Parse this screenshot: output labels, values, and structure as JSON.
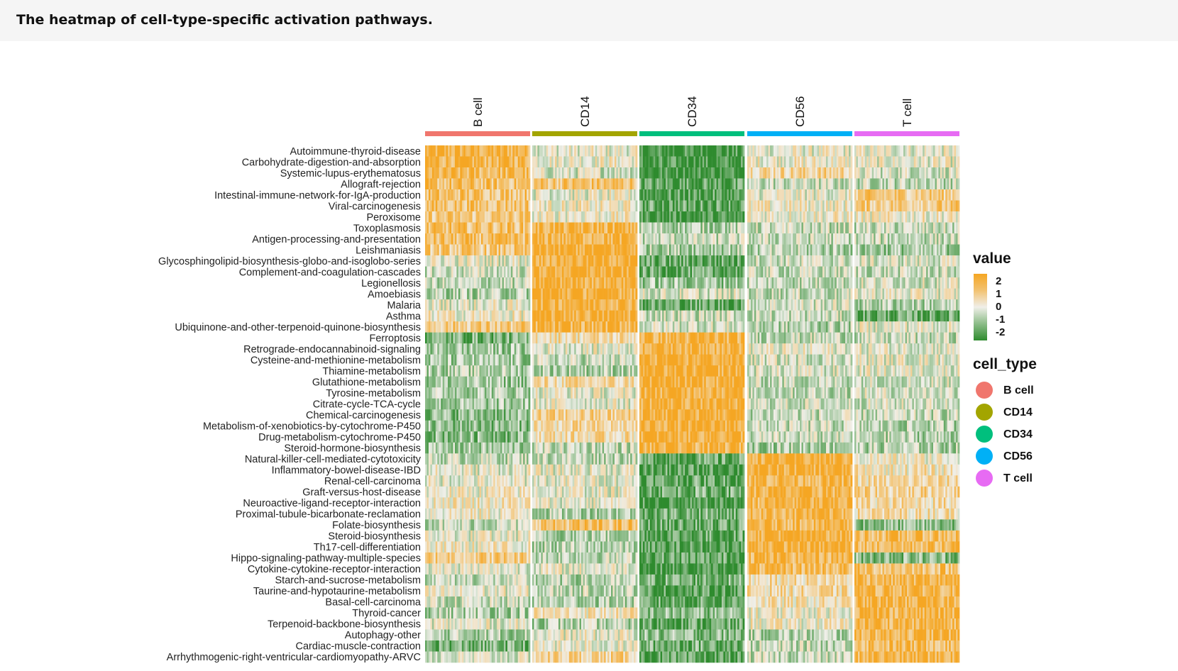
{
  "caption": "The heatmap of cell-type-specific activation pathways.",
  "chart_data": {
    "type": "heatmap",
    "columns": [
      "B cell",
      "CD14",
      "CD34",
      "CD56",
      "T cell"
    ],
    "column_colors": {
      "B cell": "#f0766d",
      "CD14": "#a3a500",
      "CD34": "#00bf7d",
      "CD56": "#00b0f6",
      "T cell": "#e76bf3"
    },
    "rows": [
      "Autoimmune-thyroid-disease",
      "Carbohydrate-digestion-and-absorption",
      "Systemic-lupus-erythematosus",
      "Allograft-rejection",
      "Intestinal-immune-network-for-IgA-production",
      "Viral-carcinogenesis",
      "Peroxisome",
      "Toxoplasmosis",
      "Antigen-processing-and-presentation",
      "Leishmaniasis",
      "Glycosphingolipid-biosynthesis-globo-and-isoglobo-series",
      "Complement-and-coagulation-cascades",
      "Legionellosis",
      "Amoebiasis",
      "Malaria",
      "Asthma",
      "Ubiquinone-and-other-terpenoid-quinone-biosynthesis",
      "Ferroptosis",
      "Retrograde-endocannabinoid-signaling",
      "Cysteine-and-methionine-metabolism",
      "Thiamine-metabolism",
      "Glutathione-metabolism",
      "Tyrosine-metabolism",
      "Citrate-cycle-TCA-cycle",
      "Chemical-carcinogenesis",
      "Metabolism-of-xenobiotics-by-cytochrome-P450",
      "Drug-metabolism-cytochrome-P450",
      "Steroid-hormone-biosynthesis",
      "Natural-killer-cell-mediated-cytotoxicity",
      "Inflammatory-bowel-disease-IBD",
      "Renal-cell-carcinoma",
      "Graft-versus-host-disease",
      "Neuroactive-ligand-receptor-interaction",
      "Proximal-tubule-bicarbonate-reclamation",
      "Folate-biosynthesis",
      "Steroid-biosynthesis",
      "Th17-cell-differentiation",
      "Hippo-signaling-pathway-multiple-species",
      "Cytokine-cytokine-receptor-interaction",
      "Starch-and-sucrose-metabolism",
      "Taurine-and-hypotaurine-metabolism",
      "Basal-cell-carcinoma",
      "Thyroid-cancer",
      "Terpenoid-backbone-biosynthesis",
      "Autophagy-other",
      "Cardiac-muscle-contraction",
      "Arrhythmogenic-right-ventricular-cardiomyopathy-ARVC"
    ],
    "mean_values": [
      [
        1.6,
        0.0,
        -1.8,
        0.0,
        0.0
      ],
      [
        1.6,
        0.2,
        -1.8,
        0.2,
        0.0
      ],
      [
        1.4,
        -0.2,
        -1.8,
        0.8,
        -0.2
      ],
      [
        1.2,
        1.2,
        -1.5,
        -0.4,
        -0.4
      ],
      [
        1.2,
        0.0,
        -1.6,
        0.0,
        1.0
      ],
      [
        1.2,
        0.2,
        -1.4,
        0.2,
        1.0
      ],
      [
        1.0,
        0.2,
        -1.8,
        0.2,
        0.2
      ],
      [
        1.2,
        1.6,
        -0.6,
        -0.4,
        -0.4
      ],
      [
        1.2,
        1.6,
        -0.4,
        -0.4,
        -0.4
      ],
      [
        1.0,
        1.8,
        -0.6,
        -0.6,
        -0.8
      ],
      [
        0.0,
        1.8,
        -1.4,
        -0.3,
        -0.2
      ],
      [
        -0.3,
        1.8,
        -1.4,
        -0.4,
        -0.4
      ],
      [
        -0.5,
        1.8,
        -0.8,
        -0.4,
        -0.2
      ],
      [
        -0.6,
        1.8,
        -0.2,
        -0.4,
        0.0
      ],
      [
        0.0,
        1.8,
        -1.4,
        -0.2,
        -0.6
      ],
      [
        0.2,
        1.8,
        -0.3,
        -0.4,
        -1.4
      ],
      [
        1.0,
        1.6,
        -0.2,
        -0.6,
        0.0
      ],
      [
        -1.2,
        0.6,
        1.6,
        -0.4,
        -0.4
      ],
      [
        -0.8,
        0.0,
        1.8,
        0.0,
        0.0
      ],
      [
        -0.8,
        -0.4,
        1.8,
        -0.2,
        0.0
      ],
      [
        -0.6,
        -0.6,
        1.8,
        -0.2,
        0.0
      ],
      [
        -0.8,
        0.6,
        1.8,
        -0.4,
        -0.2
      ],
      [
        -0.6,
        0.0,
        1.8,
        -0.4,
        -0.2
      ],
      [
        -0.8,
        0.0,
        1.8,
        -0.3,
        -0.2
      ],
      [
        -1.0,
        0.8,
        1.8,
        -0.4,
        -0.4
      ],
      [
        -1.0,
        0.6,
        1.8,
        -0.4,
        -0.6
      ],
      [
        -1.0,
        0.6,
        1.8,
        -0.4,
        -0.6
      ],
      [
        -0.8,
        -0.4,
        1.6,
        -0.6,
        -0.6
      ],
      [
        -0.4,
        -0.4,
        -1.4,
        1.8,
        0.2
      ],
      [
        0.0,
        0.0,
        -1.6,
        1.8,
        0.4
      ],
      [
        0.0,
        0.0,
        -1.4,
        1.6,
        0.6
      ],
      [
        0.2,
        0.0,
        -1.2,
        1.6,
        0.8
      ],
      [
        0.4,
        0.0,
        -1.8,
        1.6,
        0.6
      ],
      [
        0.2,
        -0.6,
        -1.2,
        1.6,
        0.6
      ],
      [
        -0.4,
        1.2,
        -1.4,
        1.6,
        -1.0
      ],
      [
        0.0,
        -0.6,
        -1.4,
        1.8,
        1.4
      ],
      [
        0.2,
        -0.6,
        -1.6,
        1.8,
        1.4
      ],
      [
        1.0,
        -0.4,
        -1.4,
        1.6,
        -1.0
      ],
      [
        0.0,
        0.0,
        -1.8,
        1.4,
        1.2
      ],
      [
        -0.4,
        -0.6,
        -1.2,
        0.6,
        1.6
      ],
      [
        0.0,
        -0.4,
        -1.6,
        0.6,
        1.6
      ],
      [
        -0.4,
        -0.6,
        -1.4,
        0.4,
        1.6
      ],
      [
        -0.6,
        0.4,
        -1.0,
        0.2,
        1.6
      ],
      [
        0.0,
        -0.6,
        -1.4,
        0.2,
        1.6
      ],
      [
        -0.6,
        0.0,
        -1.0,
        -0.6,
        1.6
      ],
      [
        -1.2,
        0.0,
        -1.2,
        -0.4,
        1.4
      ],
      [
        -0.2,
        0.8,
        -1.6,
        -0.4,
        1.6
      ]
    ],
    "color_scale": {
      "ticks": [
        2,
        1,
        0,
        -1,
        -2
      ],
      "high_color": "#f5a623",
      "mid_color": "#f0efe9",
      "low_color": "#2e8b2e"
    },
    "legend_value_title": "value",
    "legend_group_title": "cell_type"
  }
}
